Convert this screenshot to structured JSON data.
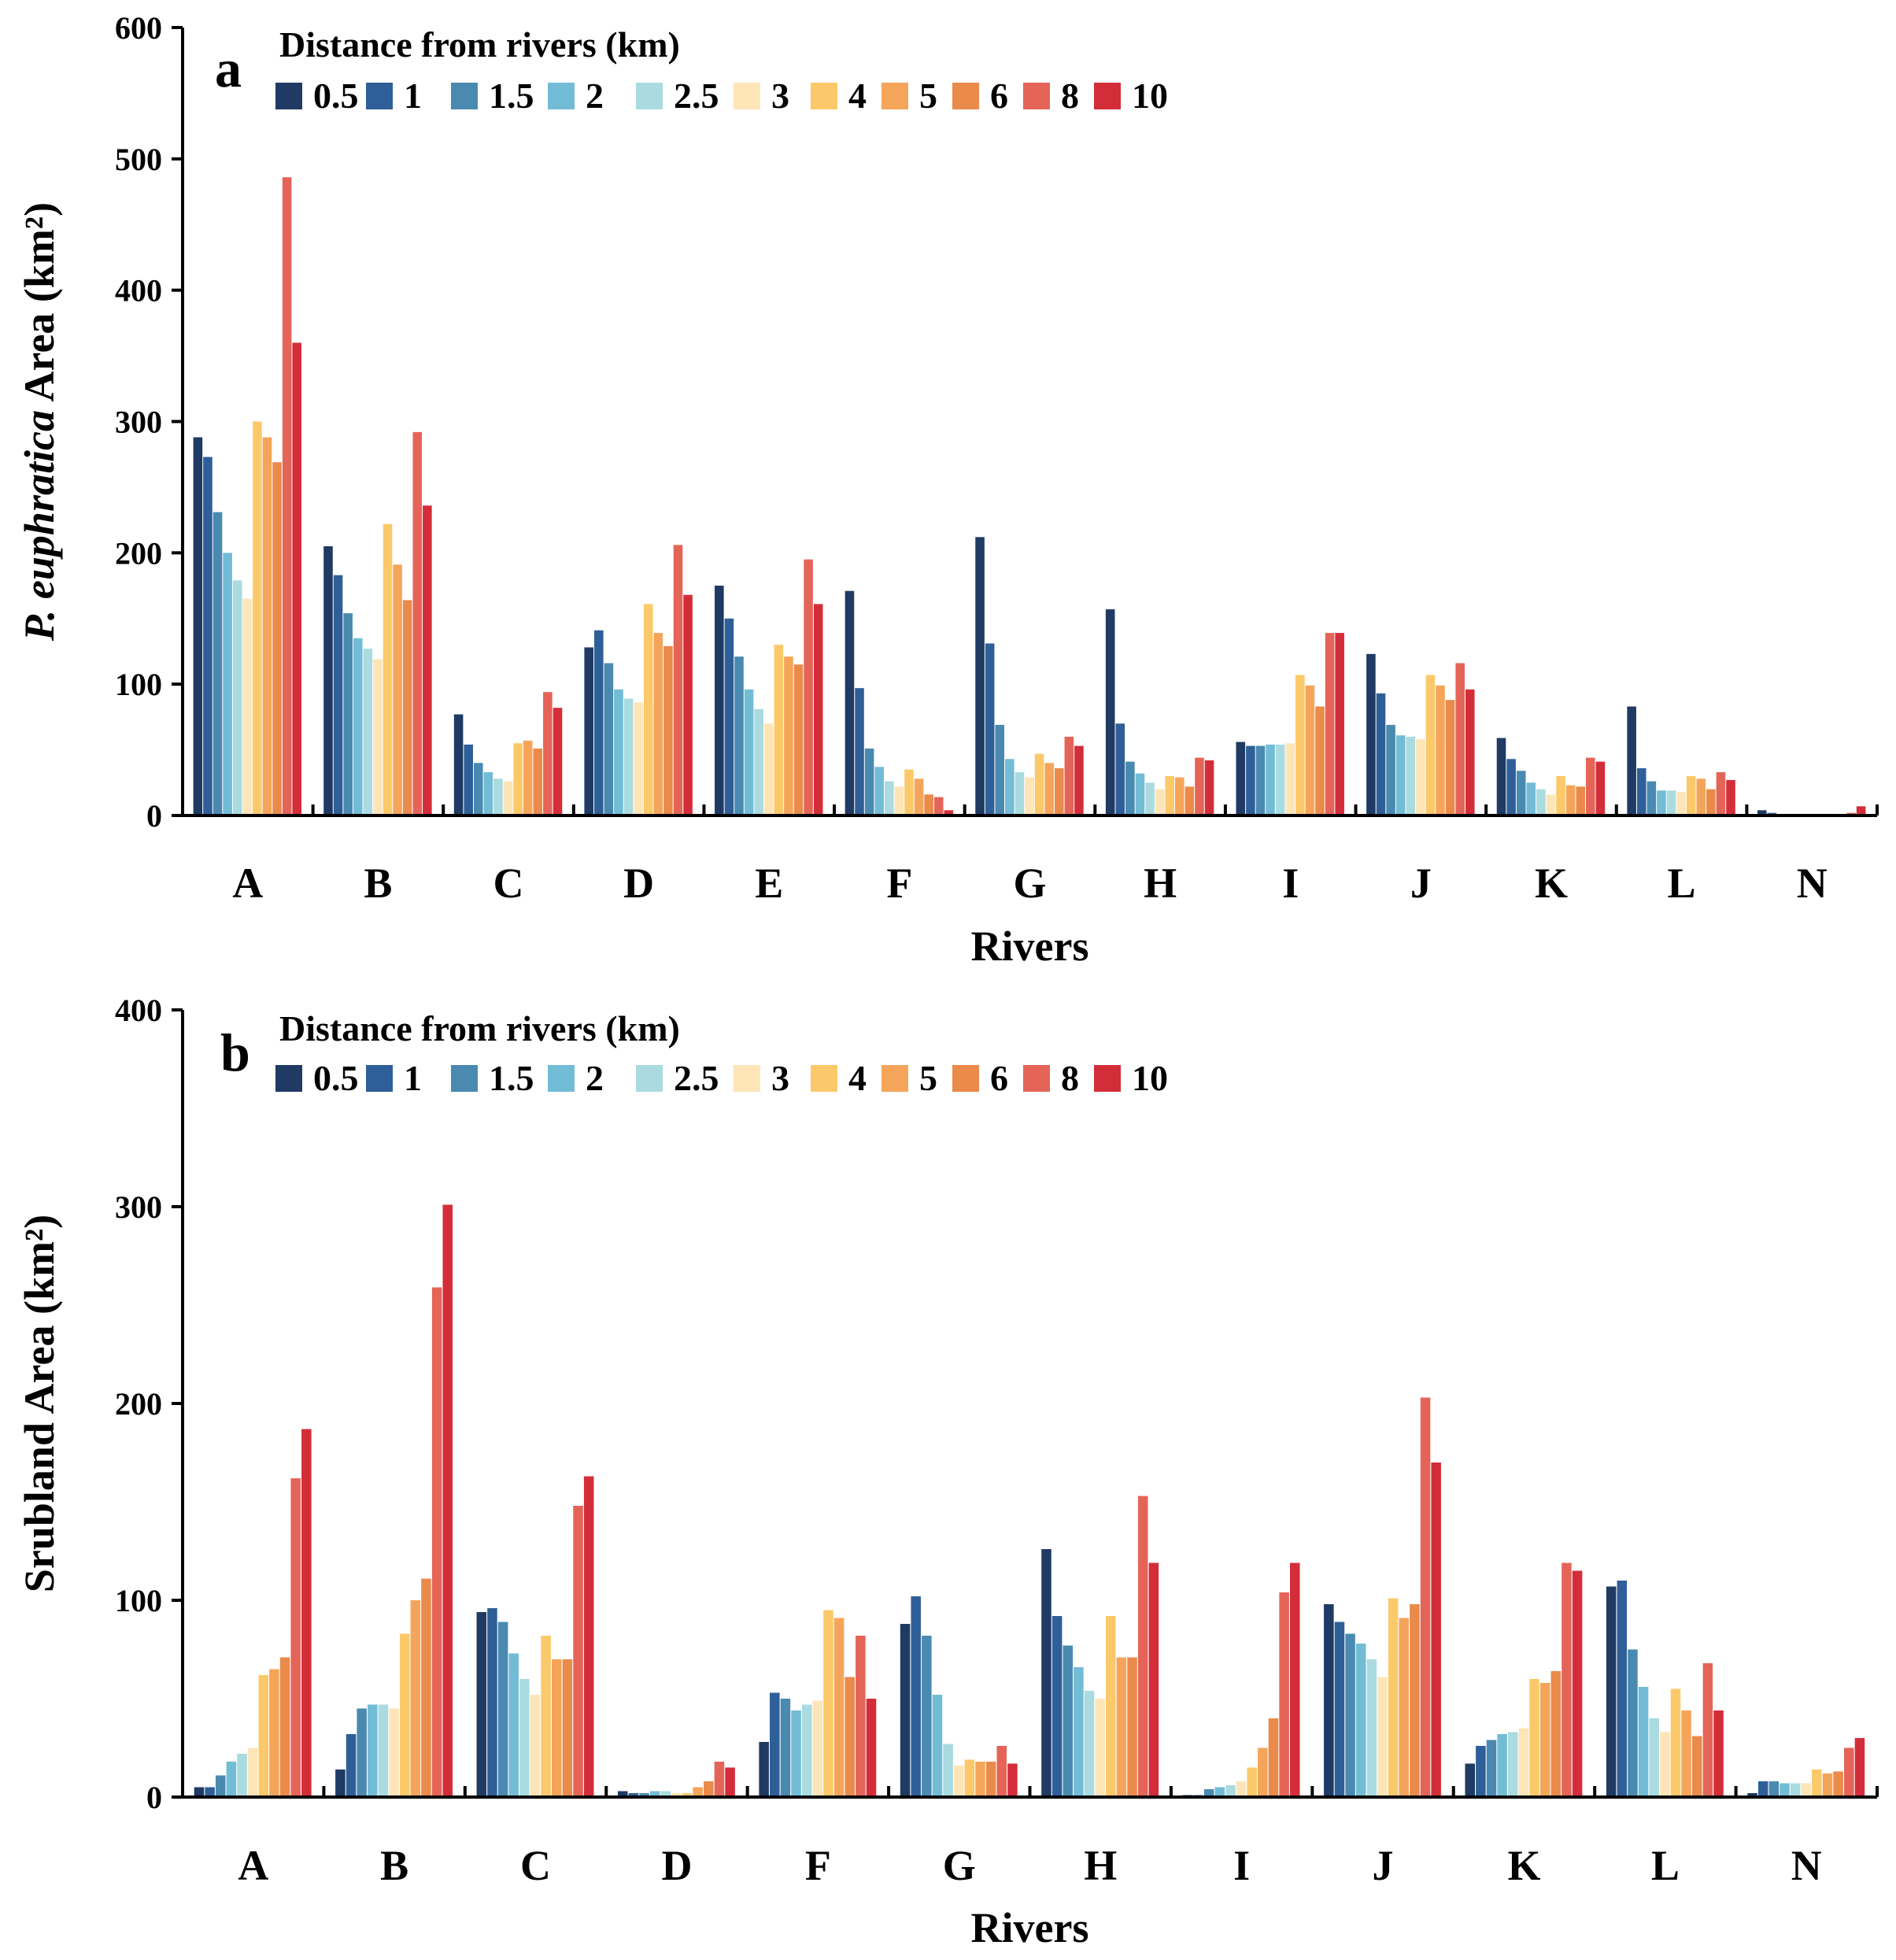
{
  "chart_data": [
    {
      "type": "bar",
      "panel_label": "a",
      "ylabel_italic": "P. euphratica",
      "ylabel_rest": " Area (km²)",
      "xlabel": "Rivers",
      "ylim": [
        0,
        600
      ],
      "yticks": [
        "0",
        "100",
        "200",
        "300",
        "400",
        "500",
        "600"
      ],
      "legend_title": "Distance from rivers (km)",
      "series_names": [
        "0.5",
        "1",
        "1.5",
        "2",
        "2.5",
        "3",
        "4",
        "5",
        "6",
        "8",
        "10"
      ],
      "colors": [
        "#1f3a63",
        "#2f5f98",
        "#4a8ab0",
        "#72bcd6",
        "#a9dbe0",
        "#fde5b8",
        "#fcc96a",
        "#f5a55a",
        "#ea8a4b",
        "#e56458",
        "#d42d3a"
      ],
      "categories": [
        "A",
        "B",
        "C",
        "D",
        "E",
        "F",
        "G",
        "H",
        "I",
        "J",
        "K",
        "L",
        "N"
      ],
      "values": [
        [
          288,
          273,
          231,
          200,
          179,
          165,
          300,
          288,
          269,
          486,
          360
        ],
        [
          205,
          183,
          154,
          135,
          127,
          119,
          222,
          191,
          164,
          292,
          236
        ],
        [
          77,
          54,
          40,
          33,
          28,
          26,
          55,
          57,
          51,
          94,
          82
        ],
        [
          128,
          141,
          116,
          96,
          89,
          86,
          161,
          139,
          129,
          206,
          168
        ],
        [
          175,
          150,
          121,
          96,
          81,
          70,
          130,
          121,
          115,
          195,
          161
        ],
        [
          171,
          97,
          51,
          37,
          26,
          22,
          35,
          28,
          16,
          14,
          4
        ],
        [
          212,
          131,
          69,
          43,
          33,
          29,
          47,
          40,
          36,
          60,
          53
        ],
        [
          157,
          70,
          41,
          32,
          25,
          20,
          30,
          29,
          22,
          44,
          42
        ],
        [
          56,
          53,
          53,
          54,
          54,
          55,
          107,
          99,
          83,
          139,
          139
        ],
        [
          123,
          93,
          69,
          61,
          60,
          58,
          107,
          99,
          88,
          116,
          96
        ],
        [
          59,
          43,
          34,
          25,
          20,
          16,
          30,
          23,
          22,
          44,
          41
        ],
        [
          83,
          36,
          26,
          19,
          19,
          18,
          30,
          28,
          20,
          33,
          27
        ],
        [
          4,
          2,
          1,
          1,
          1,
          1,
          1,
          1,
          1,
          2,
          7
        ]
      ]
    },
    {
      "type": "bar",
      "panel_label": "b",
      "ylabel_italic": "",
      "ylabel_rest": "Srubland Area (km²)",
      "xlabel": "Rivers",
      "ylim": [
        0,
        400
      ],
      "yticks": [
        "0",
        "100",
        "200",
        "300",
        "400"
      ],
      "legend_title": "Distance from rivers (km)",
      "series_names": [
        "0.5",
        "1",
        "1.5",
        "2",
        "2.5",
        "3",
        "4",
        "5",
        "6",
        "8",
        "10"
      ],
      "colors": [
        "#1f3a63",
        "#2f5f98",
        "#4a8ab0",
        "#72bcd6",
        "#a9dbe0",
        "#fde5b8",
        "#fcc96a",
        "#f5a55a",
        "#ea8a4b",
        "#e56458",
        "#d42d3a"
      ],
      "categories": [
        "A",
        "B",
        "C",
        "D",
        "F",
        "G",
        "H",
        "I",
        "J",
        "K",
        "L",
        "N"
      ],
      "values": [
        [
          5,
          5,
          11,
          18,
          22,
          25,
          62,
          65,
          71,
          162,
          187
        ],
        [
          14,
          32,
          45,
          47,
          47,
          45,
          83,
          100,
          111,
          259,
          301
        ],
        [
          94,
          96,
          89,
          73,
          60,
          52,
          82,
          70,
          70,
          148,
          163
        ],
        [
          3,
          2,
          2,
          3,
          3,
          2,
          2,
          5,
          8,
          18,
          15
        ],
        [
          28,
          53,
          50,
          44,
          47,
          49,
          95,
          91,
          61,
          82,
          50
        ],
        [
          88,
          102,
          82,
          52,
          27,
          16,
          19,
          18,
          18,
          26,
          17
        ],
        [
          126,
          92,
          77,
          66,
          54,
          50,
          92,
          71,
          71,
          153,
          119
        ],
        [
          1,
          1,
          4,
          5,
          6,
          8,
          15,
          25,
          40,
          104,
          119
        ],
        [
          98,
          89,
          83,
          78,
          70,
          61,
          101,
          91,
          98,
          203,
          170
        ],
        [
          17,
          26,
          29,
          32,
          33,
          35,
          60,
          58,
          64,
          119,
          115
        ],
        [
          107,
          110,
          75,
          56,
          40,
          33,
          55,
          44,
          31,
          68,
          44
        ],
        [
          2,
          8,
          8,
          7,
          7,
          7,
          14,
          12,
          13,
          25,
          30
        ]
      ]
    }
  ]
}
